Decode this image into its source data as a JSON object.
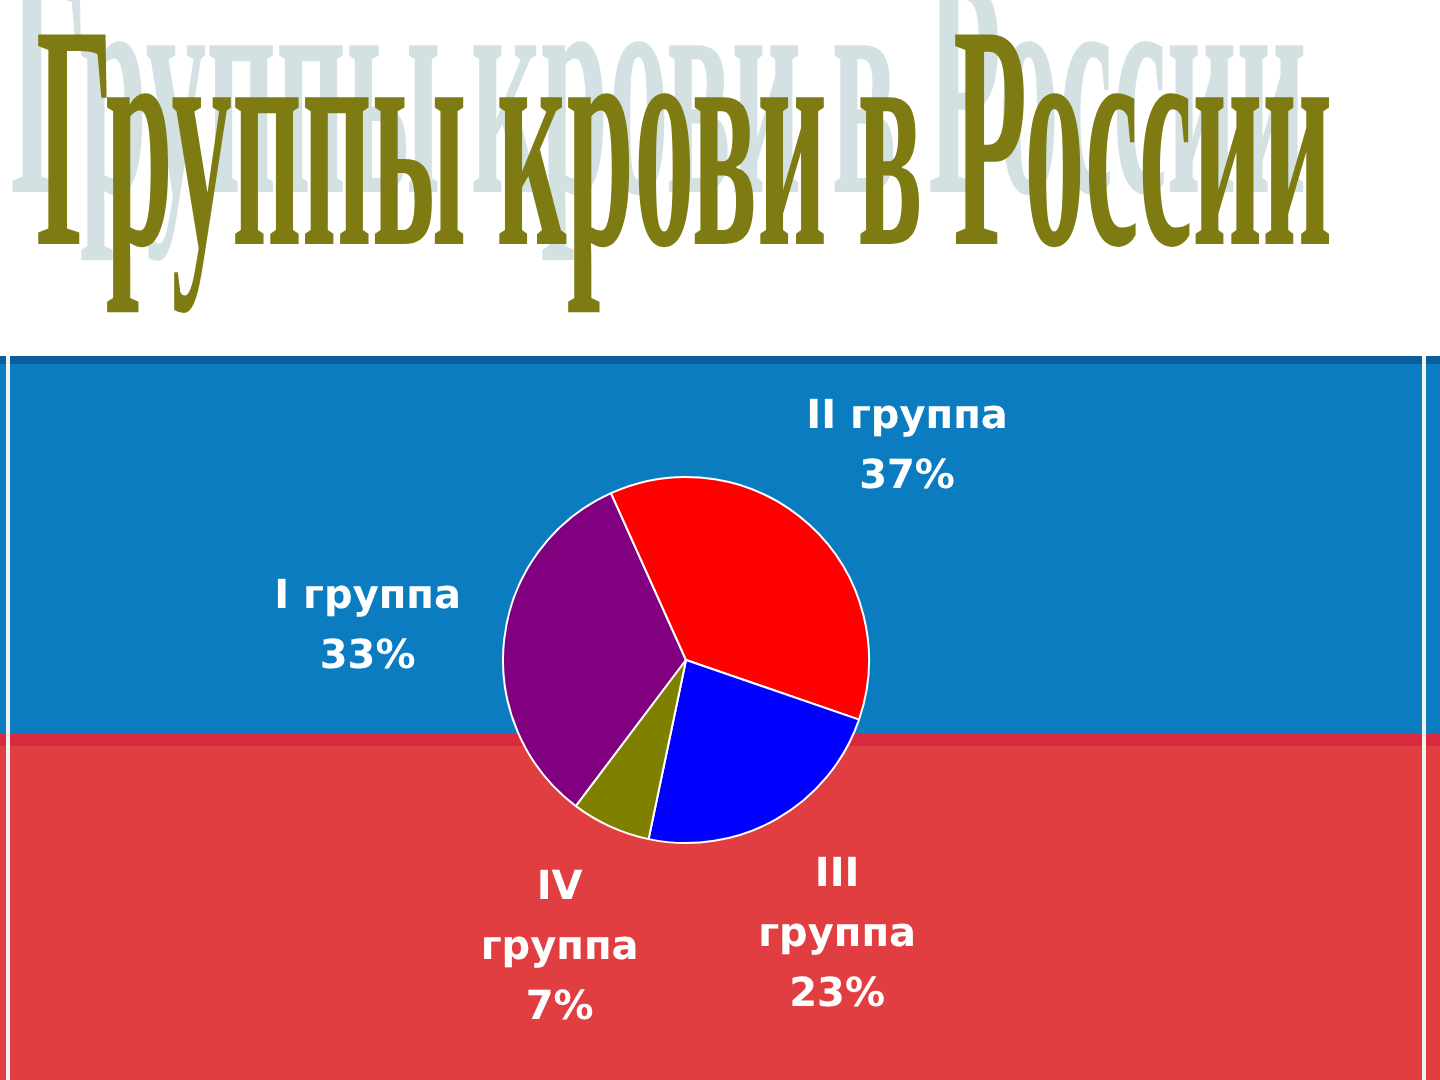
{
  "chart_data": {
    "type": "pie",
    "title": "Группы крови в России",
    "categories": [
      "I группа",
      "II группа",
      "III группа",
      "IV группа"
    ],
    "values": [
      33,
      37,
      23,
      7
    ],
    "colors": [
      "#800080",
      "#ff0000",
      "#0000ff",
      "#808000"
    ],
    "value_labels": [
      "33%",
      "37%",
      "23%",
      "7%"
    ]
  }
}
